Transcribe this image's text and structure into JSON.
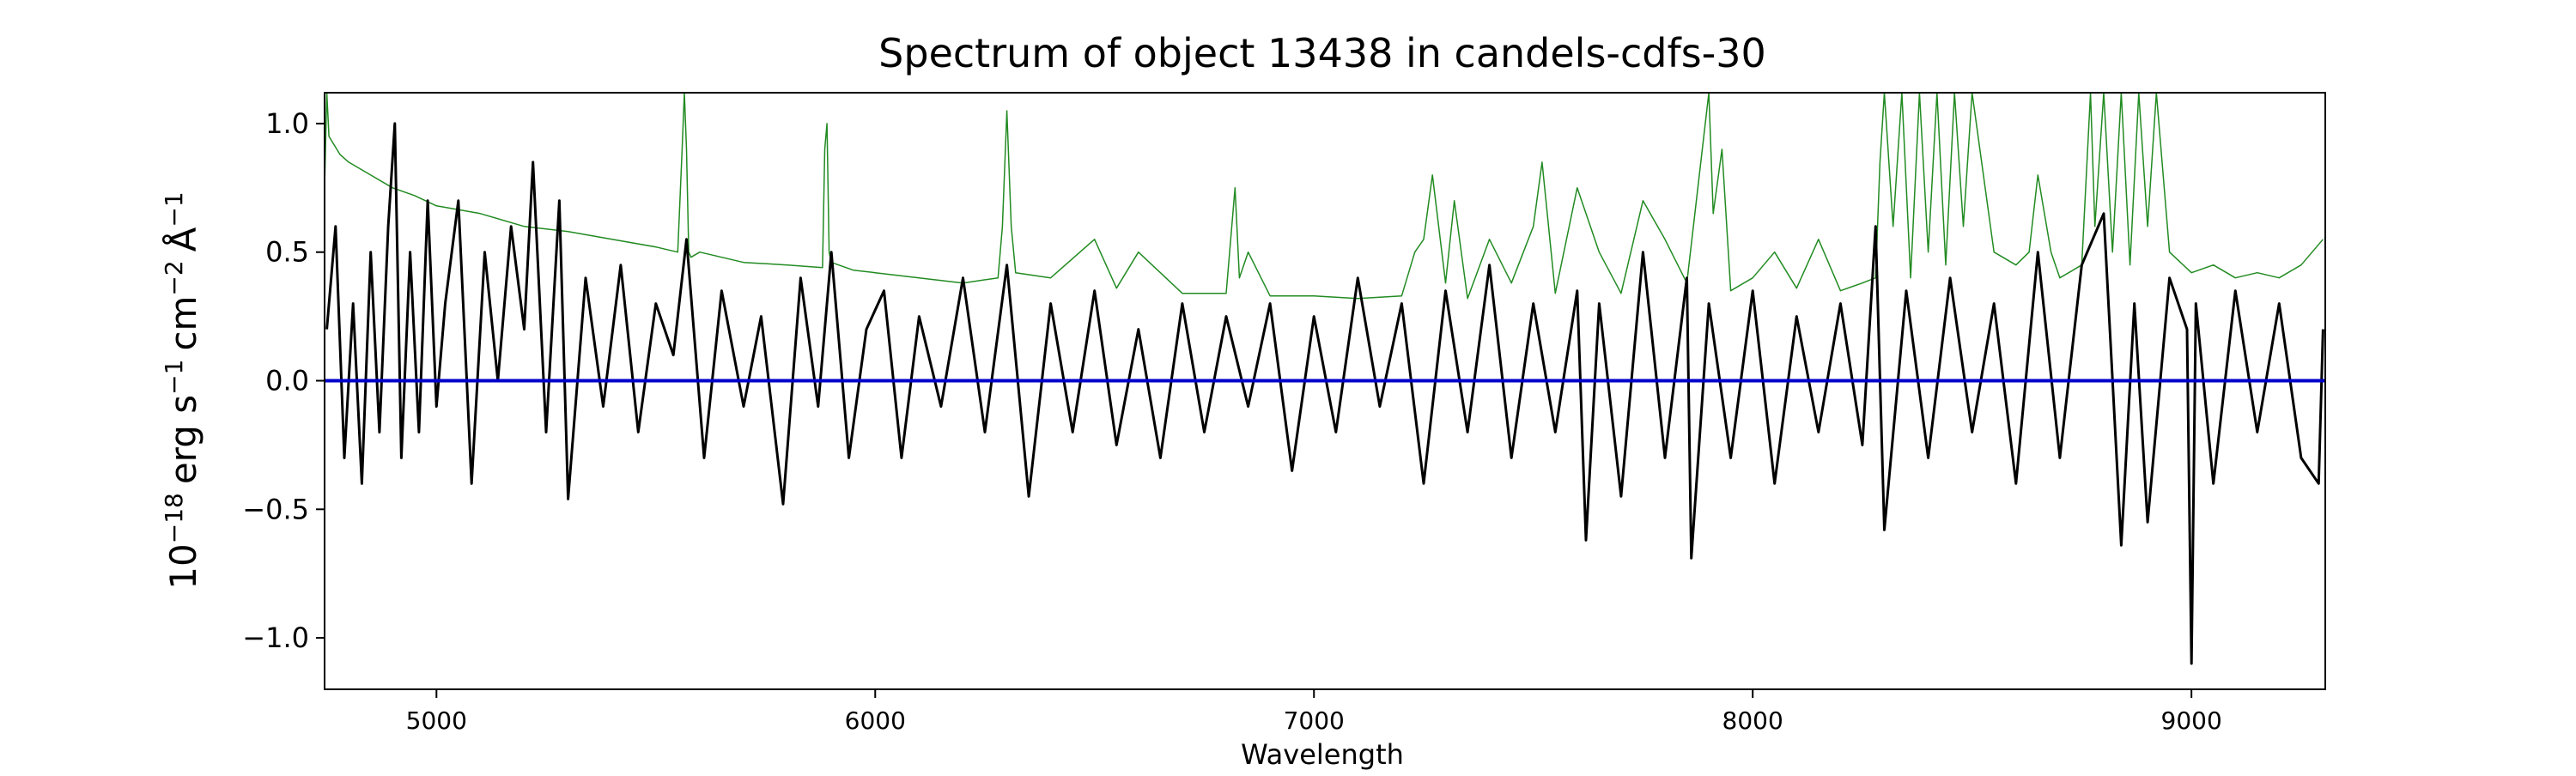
{
  "chart_data": {
    "type": "line",
    "title": "Spectrum of object 13438 in candels-cdfs-30",
    "xlabel": "Wavelength",
    "ylabel_base": "10",
    "ylabel_exp": "−18",
    "ylabel_unit1": "erg s",
    "ylabel_exp1": "−1",
    "ylabel_unit2": "cm",
    "ylabel_exp2": "−2",
    "ylabel_unit3": "Å",
    "ylabel_exp3": "−1",
    "xlim": [
      4745,
      9305
    ],
    "ylim": [
      -1.2,
      1.12
    ],
    "x_ticks": [
      5000,
      6000,
      7000,
      8000,
      9000
    ],
    "x_tick_labels": [
      "5000",
      "6000",
      "7000",
      "8000",
      "9000"
    ],
    "y_ticks": [
      -1.0,
      -0.5,
      0.0,
      0.5,
      1.0
    ],
    "y_tick_labels": [
      "−1.0",
      "−0.5",
      "0.0",
      "0.5",
      "1.0"
    ],
    "grid": false,
    "colors": {
      "flux": "#000000",
      "error": "#228b22",
      "zero": "#0000cc"
    },
    "series": [
      {
        "role": "flux",
        "x": [
          4750,
          4770,
          4790,
          4810,
          4830,
          4850,
          4870,
          4890,
          4905,
          4920,
          4940,
          4960,
          4980,
          5000,
          5020,
          5050,
          5080,
          5110,
          5140,
          5170,
          5200,
          5220,
          5250,
          5280,
          5300,
          5340,
          5380,
          5420,
          5460,
          5500,
          5540,
          5570,
          5610,
          5650,
          5700,
          5740,
          5790,
          5830,
          5870,
          5900,
          5940,
          5980,
          6020,
          6060,
          6100,
          6150,
          6200,
          6250,
          6300,
          6350,
          6400,
          6450,
          6500,
          6550,
          6600,
          6650,
          6700,
          6750,
          6800,
          6850,
          6900,
          6950,
          7000,
          7050,
          7100,
          7150,
          7200,
          7250,
          7300,
          7350,
          7400,
          7450,
          7500,
          7550,
          7600,
          7620,
          7650,
          7700,
          7750,
          7800,
          7850,
          7860,
          7900,
          7950,
          8000,
          8050,
          8100,
          8150,
          8200,
          8250,
          8280,
          8300,
          8350,
          8400,
          8450,
          8500,
          8550,
          8600,
          8650,
          8700,
          8750,
          8800,
          8840,
          8870,
          8900,
          8950,
          8990,
          9000,
          9010,
          9050,
          9100,
          9150,
          9200,
          9250,
          9290,
          9300
        ],
        "y": [
          0.2,
          0.6,
          -0.3,
          0.3,
          -0.4,
          0.5,
          -0.2,
          0.6,
          1.0,
          -0.3,
          0.5,
          -0.2,
          0.7,
          -0.1,
          0.3,
          0.7,
          -0.4,
          0.5,
          0.0,
          0.6,
          0.2,
          0.85,
          -0.2,
          0.7,
          -0.46,
          0.4,
          -0.1,
          0.45,
          -0.2,
          0.3,
          0.1,
          0.55,
          -0.3,
          0.35,
          -0.1,
          0.25,
          -0.48,
          0.4,
          -0.1,
          0.5,
          -0.3,
          0.2,
          0.35,
          -0.3,
          0.25,
          -0.1,
          0.4,
          -0.2,
          0.45,
          -0.45,
          0.3,
          -0.2,
          0.35,
          -0.25,
          0.2,
          -0.3,
          0.3,
          -0.2,
          0.25,
          -0.1,
          0.3,
          -0.35,
          0.25,
          -0.2,
          0.4,
          -0.1,
          0.3,
          -0.4,
          0.35,
          -0.2,
          0.45,
          -0.3,
          0.3,
          -0.2,
          0.35,
          -0.62,
          0.3,
          -0.45,
          0.5,
          -0.3,
          0.4,
          -0.69,
          0.3,
          -0.3,
          0.35,
          -0.4,
          0.25,
          -0.2,
          0.3,
          -0.25,
          0.6,
          -0.58,
          0.35,
          -0.3,
          0.4,
          -0.2,
          0.3,
          -0.4,
          0.5,
          -0.3,
          0.45,
          0.65,
          -0.64,
          0.3,
          -0.55,
          0.4,
          0.2,
          -1.1,
          0.3,
          -0.4,
          0.35,
          -0.2,
          0.3,
          -0.3,
          -0.4,
          0.2
        ]
      },
      {
        "role": "error",
        "x": [
          4745,
          4750,
          4755,
          4780,
          4800,
          4850,
          4900,
          4950,
          5000,
          5100,
          5200,
          5300,
          5400,
          5500,
          5550,
          5560,
          5565,
          5570,
          5575,
          5580,
          5600,
          5700,
          5800,
          5880,
          5885,
          5890,
          5895,
          5900,
          5950,
          6000,
          6100,
          6200,
          6280,
          6290,
          6300,
          6310,
          6320,
          6400,
          6500,
          6550,
          6600,
          6700,
          6800,
          6820,
          6830,
          6850,
          6900,
          7000,
          7100,
          7200,
          7230,
          7250,
          7270,
          7300,
          7320,
          7350,
          7400,
          7450,
          7500,
          7520,
          7550,
          7600,
          7650,
          7700,
          7750,
          7800,
          7850,
          7900,
          7910,
          7930,
          7950,
          8000,
          8050,
          8100,
          8150,
          8200,
          8250,
          8280,
          8290,
          8300,
          8320,
          8340,
          8360,
          8380,
          8400,
          8420,
          8440,
          8460,
          8480,
          8500,
          8550,
          8600,
          8630,
          8650,
          8680,
          8700,
          8750,
          8770,
          8780,
          8800,
          8820,
          8840,
          8860,
          8880,
          8900,
          8920,
          8950,
          9000,
          9050,
          9100,
          9150,
          9200,
          9250,
          9300
        ],
        "y": [
          0.75,
          1.12,
          0.95,
          0.88,
          0.85,
          0.8,
          0.75,
          0.72,
          0.68,
          0.65,
          0.6,
          0.58,
          0.55,
          0.52,
          0.5,
          0.9,
          1.12,
          0.9,
          0.5,
          0.48,
          0.5,
          0.46,
          0.45,
          0.44,
          0.9,
          1.0,
          0.5,
          0.46,
          0.43,
          0.42,
          0.4,
          0.38,
          0.4,
          0.6,
          1.05,
          0.6,
          0.42,
          0.4,
          0.55,
          0.36,
          0.5,
          0.34,
          0.34,
          0.75,
          0.4,
          0.5,
          0.33,
          0.33,
          0.32,
          0.33,
          0.5,
          0.55,
          0.8,
          0.38,
          0.7,
          0.32,
          0.55,
          0.38,
          0.6,
          0.85,
          0.34,
          0.75,
          0.5,
          0.34,
          0.7,
          0.55,
          0.38,
          1.12,
          0.65,
          0.9,
          0.35,
          0.4,
          0.5,
          0.36,
          0.55,
          0.35,
          0.38,
          0.4,
          0.85,
          1.12,
          0.6,
          1.12,
          0.4,
          1.12,
          0.5,
          1.12,
          0.45,
          1.12,
          0.6,
          1.12,
          0.5,
          0.45,
          0.5,
          0.8,
          0.5,
          0.4,
          0.45,
          1.12,
          0.6,
          1.12,
          0.5,
          1.12,
          0.45,
          1.12,
          0.6,
          1.12,
          0.5,
          0.42,
          0.45,
          0.4,
          0.42,
          0.4,
          0.45,
          0.55
        ]
      },
      {
        "role": "zero",
        "x": [
          4745,
          9305
        ],
        "y": [
          0.0,
          0.0
        ]
      }
    ]
  }
}
